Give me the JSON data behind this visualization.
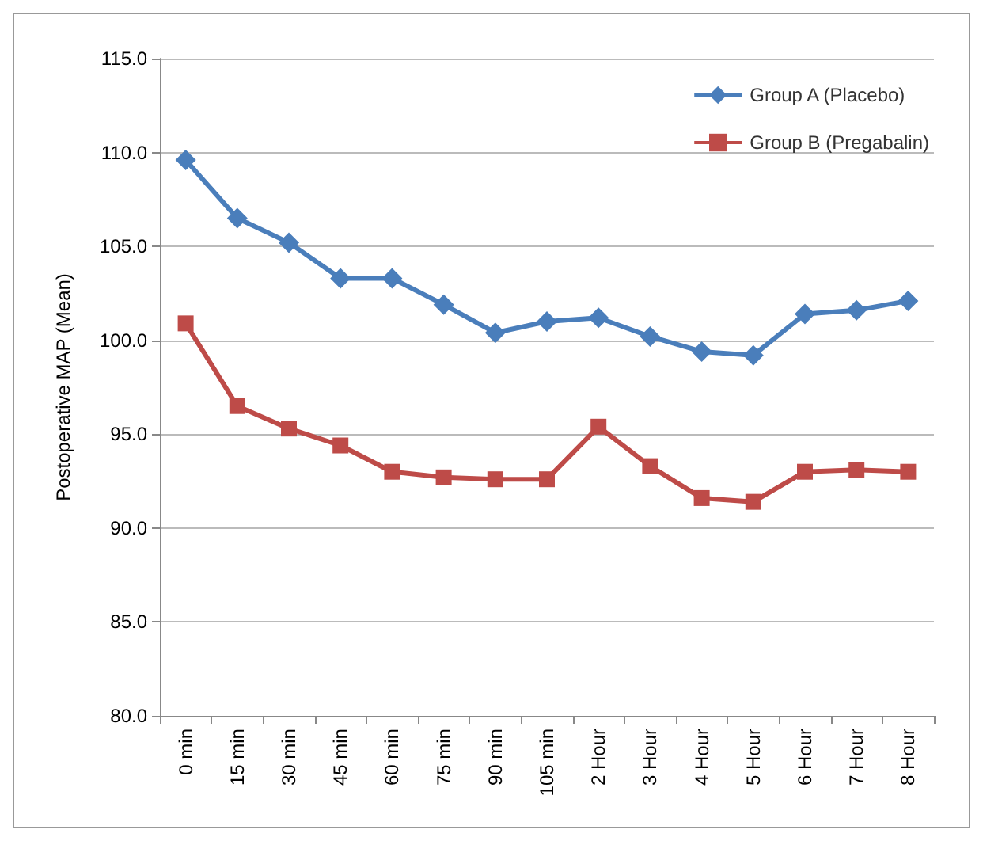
{
  "chart_data": {
    "type": "line",
    "ylabel": "Postoperative MAP (Mean)",
    "categories": [
      "0 min",
      "15 min",
      "30 min",
      "45 min",
      "60 min",
      "75 min",
      "90 min",
      "105 min",
      "2 Hour",
      "3 Hour",
      "4 Hour",
      "5 Hour",
      "6 Hour",
      "7 Hour",
      "8 Hour"
    ],
    "series": [
      {
        "name": "Group A (Placebo)",
        "color": "#4a7ebb",
        "marker": "diamond",
        "values": [
          109.6,
          106.5,
          105.2,
          103.3,
          103.3,
          101.9,
          100.4,
          101.0,
          101.2,
          100.2,
          99.4,
          99.2,
          101.4,
          101.6,
          102.1
        ]
      },
      {
        "name": "Group B (Pregabalin)",
        "color": "#be4b48",
        "marker": "square",
        "values": [
          100.9,
          96.5,
          95.3,
          94.4,
          93.0,
          92.7,
          92.6,
          92.6,
          95.4,
          93.3,
          91.6,
          91.4,
          93.0,
          93.1,
          93.0
        ]
      }
    ],
    "ylim": [
      80,
      115
    ],
    "yticks": [
      {
        "value": 80,
        "label": "80.0"
      },
      {
        "value": 85,
        "label": "85.0"
      },
      {
        "value": 90,
        "label": "90.0"
      },
      {
        "value": 95,
        "label": "95.0"
      },
      {
        "value": 100,
        "label": "100.0"
      },
      {
        "value": 105,
        "label": "105.0"
      },
      {
        "value": 110,
        "label": "110.0"
      },
      {
        "value": 115,
        "label": "115.0"
      }
    ],
    "grid": "y",
    "legend": "top right",
    "line_style": "solid"
  }
}
